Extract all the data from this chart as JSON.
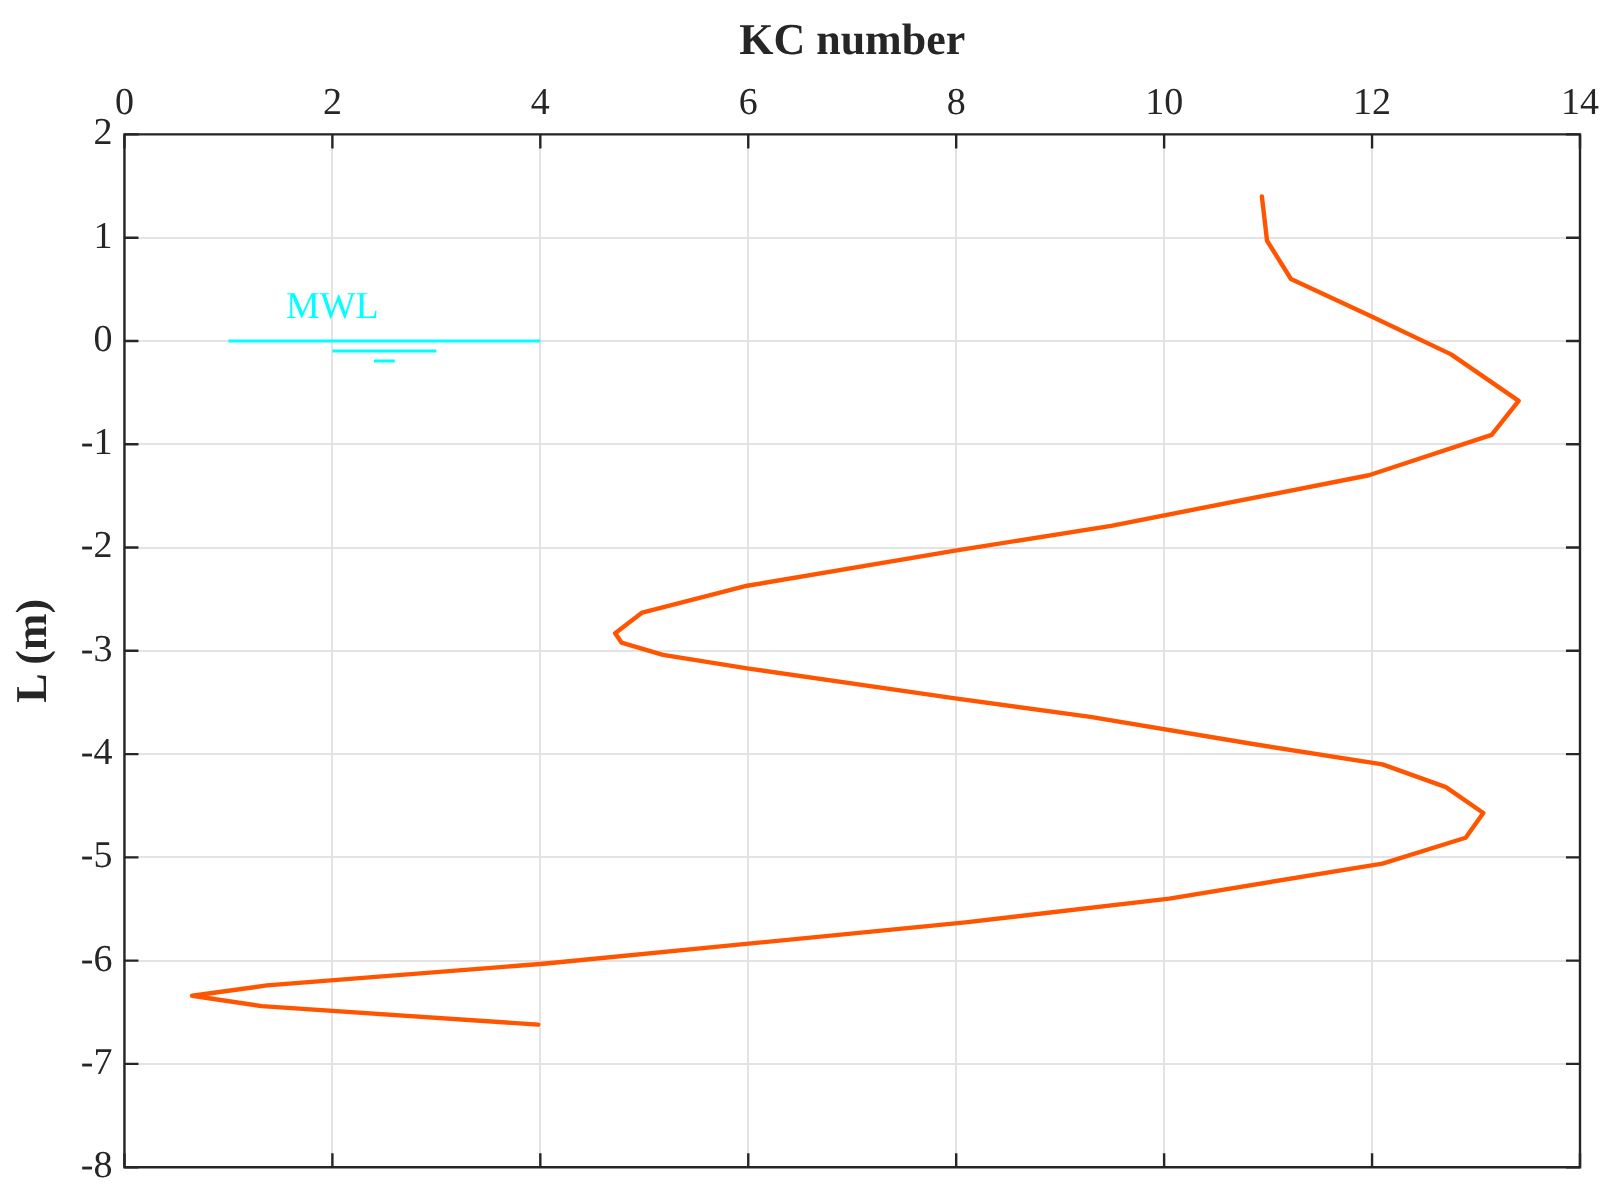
{
  "chart_data": {
    "type": "line",
    "xlabel": "KC number",
    "ylabel": "L (m)",
    "x": [
      10.94,
      10.99,
      11.22,
      11.97,
      12.76,
      13.41,
      13.15,
      11.97,
      9.49,
      7.99,
      5.99,
      4.98,
      4.72,
      4.78,
      5.18,
      5.99,
      7.99,
      9.29,
      10.84,
      12.1,
      12.71,
      13.07,
      12.9,
      12.1,
      10.05,
      8.09,
      4.03,
      1.37,
      0.65,
      1.32,
      3.98
    ],
    "series": [
      {
        "color": "#ff5500",
        "values": [
          1.4,
          0.97,
          0.6,
          0.25,
          -0.13,
          -0.58,
          -0.91,
          -1.3,
          -1.79,
          -2.03,
          -2.37,
          -2.63,
          -2.83,
          -2.92,
          -3.04,
          -3.17,
          -3.46,
          -3.64,
          -3.9,
          -4.1,
          -4.32,
          -4.57,
          -4.81,
          -5.06,
          -5.4,
          -5.63,
          -6.03,
          -6.24,
          -6.34,
          -6.44,
          -6.62
        ]
      }
    ],
    "xlim": [
      0,
      14
    ],
    "xticks": [
      0,
      2,
      4,
      6,
      8,
      10,
      12,
      14
    ],
    "ylim": [
      -8,
      2
    ],
    "yticks": [
      -8,
      -7,
      -6,
      -5,
      -4,
      -3,
      -2,
      -1,
      0,
      1,
      2
    ],
    "ref_lines": [
      {
        "axis": "y",
        "value": 0,
        "label": "MWL",
        "color": "#00ffff"
      }
    ],
    "grid": true,
    "legend": false,
    "marker": "none",
    "line_style": "solid"
  }
}
